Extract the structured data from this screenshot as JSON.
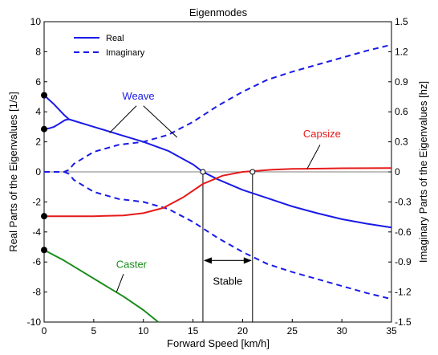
{
  "chart_data": {
    "type": "line",
    "title": "Eigenmodes",
    "xlabel": "Forward Speed [km/h]",
    "ylabel": "Real Parts of the Eigenvalues [1/s]",
    "y2label": "Imaginary Parts of the Eigenvalues [hz]",
    "xlim": [
      0,
      35
    ],
    "ylim": [
      -10,
      10
    ],
    "y2lim": [
      -1.5,
      1.5
    ],
    "xticks": [
      0,
      5,
      10,
      15,
      20,
      25,
      30,
      35
    ],
    "yticks": [
      -10,
      -8,
      -6,
      -4,
      -2,
      0,
      2,
      4,
      6,
      8,
      10
    ],
    "y2ticks": [
      "-1.5",
      "-1.2",
      "-0.9",
      "-0.6",
      "-0.3",
      "0",
      "0.3",
      "0.6",
      "0.9",
      "1.2",
      "1.5"
    ],
    "grid": false,
    "legend": {
      "position": "top-left",
      "entries": [
        {
          "label": "Real",
          "style": "solid"
        },
        {
          "label": "Imaginary",
          "style": "dashed"
        }
      ]
    },
    "colors": {
      "weave": "#1a1ae6",
      "capsize": "#e61a1a",
      "caster": "#1a8c1a",
      "axis": "#000000"
    },
    "series": [
      {
        "mode": "weave",
        "part": "real",
        "style": "solid",
        "color": "#1a1ae6",
        "x": [
          0,
          0.5,
          1,
          1.5,
          2,
          2.5,
          2.1,
          1.5,
          1,
          0.5,
          0
        ],
        "y": [
          5.1,
          4.8,
          4.5,
          4.15,
          3.8,
          3.5,
          3.45,
          3.2,
          3.0,
          2.9,
          2.85
        ]
      },
      {
        "mode": "weave",
        "part": "real",
        "style": "solid",
        "color": "#1a1ae6",
        "x": [
          2.5,
          5,
          7.5,
          10,
          12.5,
          15,
          16,
          17.5,
          20,
          22.5,
          25,
          27.5,
          30,
          32.5,
          35
        ],
        "y": [
          3.5,
          3.0,
          2.5,
          2.0,
          1.4,
          0.5,
          0.0,
          -0.5,
          -1.2,
          -1.75,
          -2.3,
          -2.75,
          -3.15,
          -3.45,
          -3.7
        ]
      },
      {
        "mode": "weave",
        "part": "imaginary",
        "style": "dashed",
        "color": "#1a1ae6",
        "x": [
          0,
          2,
          2.5,
          3,
          4,
          5,
          7.5,
          10,
          12.5,
          15,
          17.5,
          20,
          22.5,
          25,
          27.5,
          30,
          32.5,
          35
        ],
        "y": [
          0.0,
          0.0,
          0.02,
          0.08,
          0.14,
          0.2,
          0.27,
          0.3,
          0.37,
          0.5,
          0.66,
          0.8,
          0.92,
          1.0,
          1.07,
          1.14,
          1.21,
          1.27
        ]
      },
      {
        "mode": "weave",
        "part": "imaginary",
        "style": "dashed",
        "color": "#1a1ae6",
        "x": [
          2,
          2.5,
          3,
          4,
          5,
          7.5,
          10,
          12.5,
          15,
          17.5,
          20,
          22.5,
          25,
          27.5,
          30,
          32.5,
          35
        ],
        "y": [
          0.0,
          -0.02,
          -0.08,
          -0.14,
          -0.2,
          -0.27,
          -0.3,
          -0.37,
          -0.5,
          -0.66,
          -0.8,
          -0.92,
          -1.0,
          -1.07,
          -1.14,
          -1.21,
          -1.27
        ]
      },
      {
        "mode": "capsize",
        "part": "real",
        "style": "solid",
        "color": "#e61a1a",
        "x": [
          0,
          5,
          8,
          10,
          12,
          14,
          16,
          18,
          20,
          21,
          23,
          25,
          28,
          30,
          35
        ],
        "y": [
          -2.95,
          -2.95,
          -2.9,
          -2.75,
          -2.4,
          -1.7,
          -0.8,
          -0.25,
          0.0,
          0.05,
          0.15,
          0.2,
          0.22,
          0.24,
          0.25
        ]
      },
      {
        "mode": "caster",
        "part": "real",
        "style": "solid",
        "color": "#1a8c1a",
        "x": [
          0,
          2,
          4,
          6,
          8,
          10,
          11.5
        ],
        "y": [
          -5.2,
          -5.9,
          -6.7,
          -7.5,
          -8.3,
          -9.2,
          -10.0
        ]
      }
    ],
    "points": [
      {
        "x": 0,
        "y": 5.1
      },
      {
        "x": 0,
        "y": 2.85
      },
      {
        "x": 0,
        "y": -2.95
      },
      {
        "x": 0,
        "y": -5.2
      }
    ],
    "open_points": [
      {
        "x": 16,
        "y": 0
      },
      {
        "x": 21,
        "y": 0
      }
    ],
    "vlines": [
      16,
      21
    ],
    "annotations": {
      "weave": {
        "text": "Weave",
        "color": "#1a1ae6"
      },
      "capsize": {
        "text": "Capsize",
        "color": "#e61a1a"
      },
      "caster": {
        "text": "Caster",
        "color": "#1a8c1a"
      },
      "stable": {
        "text": "Stable",
        "color": "#000000",
        "from": 16,
        "to": 21
      }
    }
  }
}
